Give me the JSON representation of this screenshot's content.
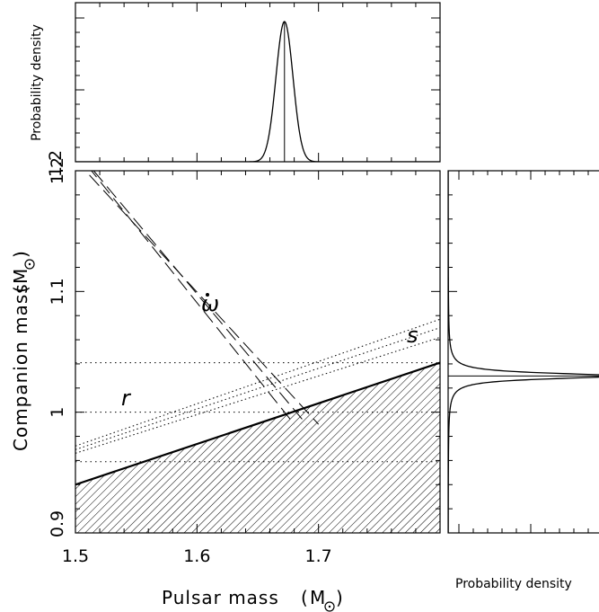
{
  "chart_data": {
    "type": "line",
    "main": {
      "xlabel": "Pulsar mass",
      "ylabel": "Companion mass",
      "unit_symbol": "M",
      "xlim": [
        1.5,
        1.8
      ],
      "ylim": [
        0.9,
        1.2
      ],
      "xticks": [
        {
          "value": 1.5,
          "label": "1.5"
        },
        {
          "value": 1.6,
          "label": "1.6"
        },
        {
          "value": 1.7,
          "label": "1.7"
        }
      ],
      "yticks": [
        {
          "value": 0.9,
          "label": "0.9"
        },
        {
          "value": 1.0,
          "label": "1"
        },
        {
          "value": 1.1,
          "label": "1.1"
        },
        {
          "value": 1.2,
          "label": "1.2"
        }
      ],
      "omdot_lines": [
        {
          "x": [
            1.5,
            1.7
          ],
          "y": [
            1.209,
            0.99
          ]
        },
        {
          "x": [
            1.51,
            1.68
          ],
          "y": [
            1.204,
            0.99
          ]
        },
        {
          "x": [
            1.515,
            1.69
          ],
          "y": [
            1.2,
            0.99
          ]
        }
      ],
      "s_lines": [
        {
          "x": [
            1.5,
            1.8
          ],
          "y": [
            0.966,
            1.062
          ]
        },
        {
          "x": [
            1.5,
            1.8
          ],
          "y": [
            0.969,
            1.07
          ]
        },
        {
          "x": [
            1.5,
            1.8
          ],
          "y": [
            0.972,
            1.077
          ]
        }
      ],
      "r_lines": [
        0.959,
        1.0,
        1.041
      ],
      "boundary": {
        "x": [
          1.5,
          1.8
        ],
        "y": [
          0.94,
          1.041
        ]
      },
      "annotations": {
        "omdot": "ω",
        "s": "s",
        "r": "r"
      }
    },
    "top_panel": {
      "ylabel": "Probability density",
      "ytick_label": "1.2",
      "peak_x": 1.672,
      "sigma": 0.007
    },
    "right_panel": {
      "xlabel": "Probability density",
      "peak_y": 1.03,
      "sigma": 0.003
    }
  }
}
